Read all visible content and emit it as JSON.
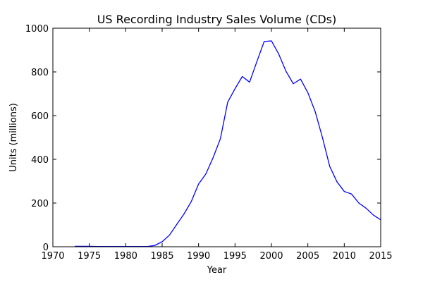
{
  "chart_data": {
    "type": "line",
    "title": "US Recording Industry Sales Volume (CDs)",
    "xlabel": "Year",
    "ylabel": "Units (millions)",
    "xlim": [
      1970,
      2015
    ],
    "ylim": [
      0,
      1000
    ],
    "xticks": [
      1970,
      1975,
      1980,
      1985,
      1990,
      1995,
      2000,
      2005,
      2010,
      2015
    ],
    "yticks": [
      0,
      200,
      400,
      600,
      800,
      1000
    ],
    "grid": false,
    "series": [
      {
        "color": "#0000ff",
        "x": [
          1973,
          1974,
          1975,
          1976,
          1977,
          1978,
          1979,
          1980,
          1981,
          1982,
          1983,
          1984,
          1985,
          1986,
          1987,
          1988,
          1989,
          1990,
          1991,
          1992,
          1993,
          1994,
          1995,
          1996,
          1997,
          1998,
          1999,
          2000,
          2001,
          2002,
          2003,
          2004,
          2005,
          2006,
          2007,
          2008,
          2009,
          2010,
          2011,
          2012,
          2013,
          2014,
          2015
        ],
        "y": [
          2,
          2,
          2,
          1,
          1,
          1,
          1,
          1,
          1,
          1,
          1,
          6,
          23,
          53,
          102,
          150,
          207,
          287,
          333,
          408,
          495,
          662,
          723,
          779,
          753,
          847,
          939,
          942,
          882,
          803,
          746,
          767,
          705,
          619,
          500,
          368,
          297,
          253,
          241,
          200,
          176,
          145,
          123
        ]
      }
    ]
  }
}
